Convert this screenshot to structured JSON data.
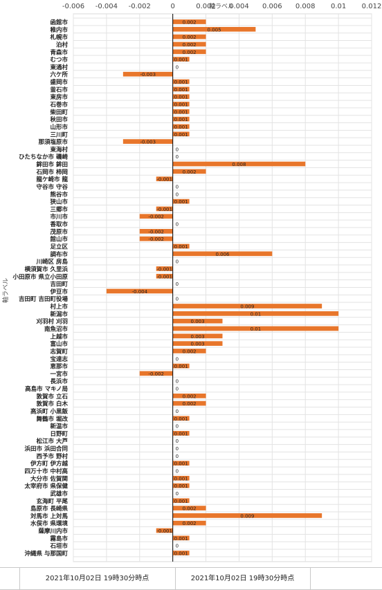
{
  "chart_data": {
    "type": "bar",
    "orientation": "horizontal",
    "xlabel": "軸ラベル",
    "ylabel": "軸ラベル",
    "xlim": [
      -0.006,
      0.012
    ],
    "x_ticks": [
      -0.006,
      -0.004,
      -0.002,
      0,
      0.002,
      0.004,
      0.006,
      0.008,
      0.01,
      0.012
    ],
    "x_tick_labels": [
      "-0.006",
      "-0.004",
      "-0.002",
      "0",
      "0.002",
      "0.004",
      "0.006",
      "0.008",
      "0.01",
      "0.012"
    ],
    "grid": true,
    "bar_color": "#e8762b",
    "categories": [
      "函館市",
      "稚内市",
      "札幌市",
      "泊村",
      "青森市",
      "むつ市",
      "東通村",
      "六ケ所",
      "盛岡市",
      "釜石市",
      "東房市",
      "石巻市",
      "柴田町",
      "秋田市",
      "山形市",
      "三川町",
      "那須塩原市",
      "東海村",
      "ひたちなか市 磯崎",
      "鉾田市 鉾田",
      "石岡市 柿岡",
      "龍ケ崎市 龍",
      "守谷市 守谷",
      "熊谷市",
      "狭山市",
      "三郷市",
      "市川市",
      "香取市",
      "茂原市",
      "館山市",
      "足立区",
      "調布市",
      "川崎区 房島",
      "横須賀市 久里浜",
      "小田原市 県立小田原",
      "吉田町",
      "伊豆市",
      "吉田町 吉田町役場",
      "村上市",
      "新潟市",
      "刈羽村 刈羽",
      "南魚沼市",
      "上越市",
      "富山市",
      "志賀町",
      "宝達志",
      "恵那市",
      "一宮市",
      "長浜市",
      "高島市 マキノ局",
      "敦賀市 立石",
      "敦賀市 白木",
      "高浜町 小黒飯",
      "舞鶴市 堀改",
      "新温市",
      "日野町",
      "松江市 大芦",
      "浜田市 浜田合同",
      "西予市 野村",
      "伊方町 伊方越",
      "四万十市 中村高",
      "大分市 佐賀関",
      "太宰府市 県保健",
      "武雄市",
      "玄海町 平尾",
      "島原市 長崎県",
      "対馬市 上対馬",
      "水俣市 県環境",
      "薩摩川内市",
      "霧島市",
      "石垣市",
      "沖縄県 与那国町"
    ],
    "values": [
      0.002,
      0.005,
      0.002,
      0.002,
      0.002,
      0.001,
      0,
      -0.003,
      0.001,
      0.001,
      0.001,
      0.001,
      0.001,
      0.001,
      0.001,
      0.001,
      -0.003,
      0,
      0,
      0.008,
      0.002,
      -0.001,
      0,
      0,
      0.001,
      -0.001,
      -0.002,
      0,
      -0.002,
      -0.002,
      0.001,
      0.006,
      0,
      -0.001,
      -0.001,
      0,
      -0.004,
      0,
      0.009,
      0.01,
      0.003,
      0.01,
      0.003,
      0.003,
      0.002,
      0,
      0.001,
      -0.002,
      0,
      0,
      0.002,
      0.002,
      0,
      0.001,
      0,
      0.001,
      0,
      0,
      0,
      0.001,
      0,
      0.001,
      0.001,
      0,
      0.001,
      0.002,
      0.009,
      0.002,
      -0.001,
      0.001,
      0,
      0.001
    ],
    "data_labels": [
      "0.002",
      "0.005",
      "0.002",
      "0.002",
      "0.002",
      "0.001",
      "0",
      "-0.003",
      "0.001",
      "0.001",
      "0.001",
      "0.001",
      "0.001",
      "0.001",
      "0.001",
      "0.001",
      "-0.003",
      "0",
      "0",
      "0.008",
      "0.002",
      "-0.001",
      "0",
      "0",
      "0.001",
      "-0.001",
      "-0.002",
      "0",
      "-0.002",
      "-0.002",
      "0.001",
      "0.006",
      "0",
      "-0.001",
      "-0.001",
      "0",
      "-0.004",
      "0",
      "0.009",
      "0.01",
      "0.003",
      "0.01",
      "0.003",
      "0.003",
      "0.002",
      "0",
      "0.001",
      "-0.002",
      "0",
      "0",
      "0.002",
      "0.002",
      "0",
      "0.001",
      "0",
      "0.001",
      "0",
      "0",
      "0",
      "0.001",
      "0",
      "0.001",
      "0.001",
      "0",
      "0.001",
      "0.002",
      "0.009",
      "0.002",
      "-0.001",
      "0.001",
      "0",
      "0.001"
    ]
  },
  "footer": {
    "label_left": "2021年10月02日 19時30分時点",
    "label_right": "2021年10月02日 19時30分時点"
  }
}
